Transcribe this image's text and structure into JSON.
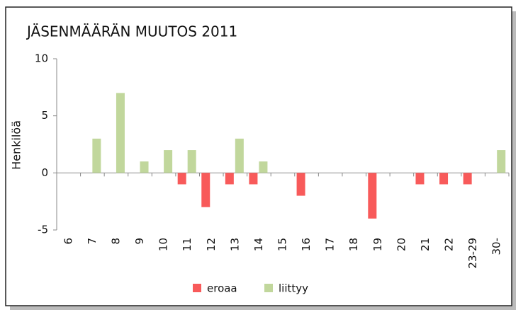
{
  "chart_data": {
    "type": "bar",
    "title": "JÄSENMÄÄRÄN MUUTOS 2011",
    "ylabel": "Henkilöä",
    "categories": [
      "6",
      "7",
      "8",
      "9",
      "10",
      "11",
      "12",
      "13",
      "14",
      "15",
      "16",
      "17",
      "18",
      "19",
      "20",
      "21",
      "22",
      "23-29",
      "30-"
    ],
    "series": [
      {
        "name": "eroaa",
        "color": "#f85a5a",
        "values": [
          0,
          0,
          0,
          0,
          0,
          -1,
          -3,
          -1,
          -1,
          0,
          -2,
          0,
          0,
          -4,
          0,
          -1,
          -1,
          -1,
          0
        ]
      },
      {
        "name": "liittyy",
        "color": "#c1d79c",
        "values": [
          0,
          3,
          7,
          1,
          2,
          2,
          0,
          3,
          1,
          0,
          0,
          0,
          0,
          0,
          0,
          0,
          0,
          0,
          2
        ]
      }
    ],
    "ylim": [
      -5,
      10
    ],
    "yticks": [
      -5,
      0,
      5,
      10
    ],
    "legend": "bottom"
  }
}
